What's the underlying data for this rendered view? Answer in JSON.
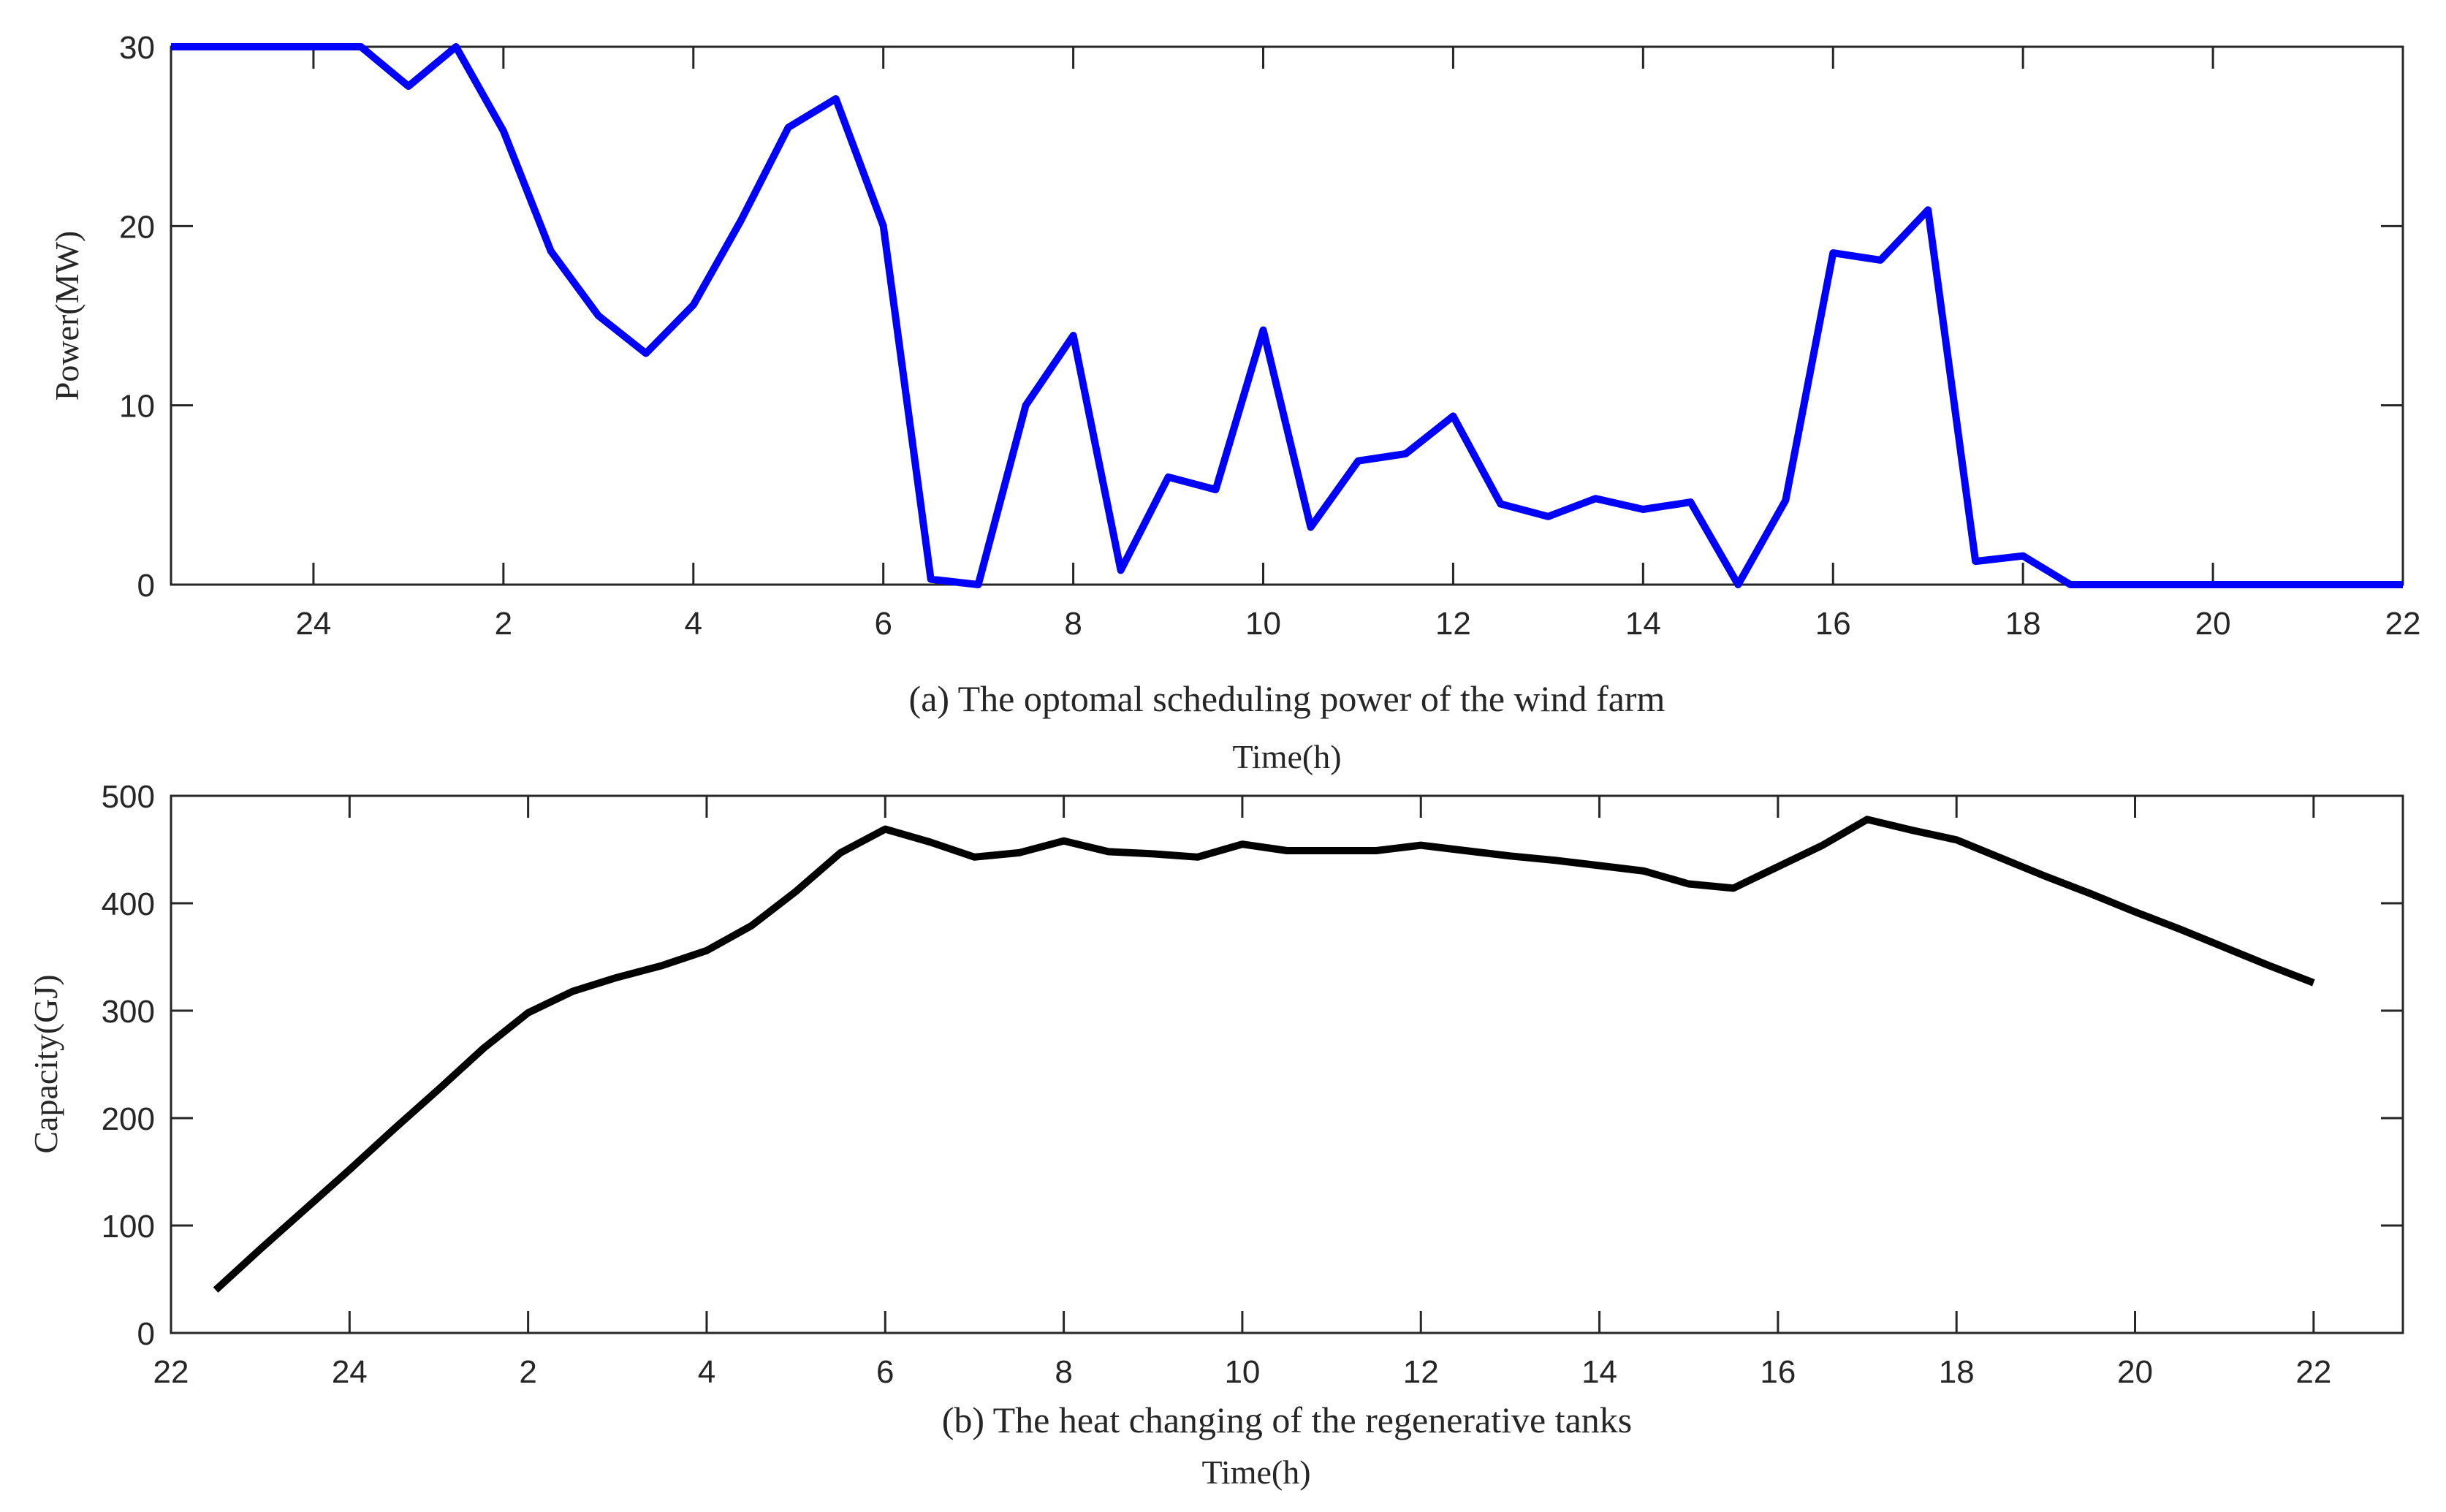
{
  "chart_data": [
    {
      "type": "line",
      "caption": "(a)  The optomal scheduling power of the wind farm",
      "xlabel": "Time(h)",
      "ylabel": "Power(MW)",
      "color": "#0000ff",
      "xlim": [
        22.5,
        46
      ],
      "ylim": [
        0,
        30
      ],
      "xticks": [
        24,
        26,
        28,
        30,
        32,
        34,
        36,
        38,
        40,
        42,
        44,
        46
      ],
      "xtick_labels": [
        "24",
        "2",
        "4",
        "6",
        "8",
        "10",
        "12",
        "14",
        "16",
        "18",
        "20",
        "22"
      ],
      "yticks": [
        0,
        10,
        20,
        30
      ],
      "ytick_labels": [
        "0",
        "10",
        "20",
        "30"
      ],
      "x": [
        22.5,
        23,
        23.5,
        24,
        24.5,
        25,
        25.5,
        26,
        26.5,
        27,
        27.5,
        28,
        28.5,
        29,
        29.5,
        30,
        30.5,
        31,
        31.5,
        32,
        32.5,
        33,
        33.5,
        34,
        34.5,
        35,
        35.5,
        36,
        36.5,
        37,
        37.5,
        38,
        38.5,
        39,
        39.5,
        40,
        40.5,
        41,
        41.5,
        42,
        42.5,
        43,
        43.5,
        44,
        44.5,
        45,
        45.5,
        46
      ],
      "y": [
        30,
        30,
        30,
        30,
        30,
        27.8,
        30,
        25.3,
        18.6,
        15,
        12.9,
        15.6,
        20.3,
        25.5,
        27.1,
        20,
        0.3,
        0,
        10,
        13.9,
        0.8,
        6,
        5.3,
        14.2,
        3.2,
        6.9,
        7.3,
        9.4,
        4.5,
        3.8,
        4.8,
        4.2,
        4.6,
        0,
        4.7,
        18.5,
        18.1,
        20.9,
        1.3,
        1.6,
        0,
        0,
        0,
        0,
        0,
        0,
        0,
        0
      ]
    },
    {
      "type": "line",
      "caption": "(b)  The heat changing of the regenerative tanks",
      "xlabel": "Time(h)",
      "ylabel": "Capacity(GJ)",
      "color": "#000000",
      "xlim": [
        22,
        47
      ],
      "ylim": [
        0,
        500
      ],
      "xticks": [
        22,
        24,
        26,
        28,
        30,
        32,
        34,
        36,
        38,
        40,
        42,
        44,
        46
      ],
      "xtick_labels": [
        "22",
        "24",
        "2",
        "4",
        "6",
        "8",
        "10",
        "12",
        "14",
        "16",
        "18",
        "20",
        "22"
      ],
      "yticks": [
        0,
        100,
        200,
        300,
        400,
        500
      ],
      "ytick_labels": [
        "0",
        "100",
        "200",
        "300",
        "400",
        "500"
      ],
      "x": [
        22.5,
        23,
        23.5,
        24,
        24.5,
        25,
        25.5,
        26,
        26.5,
        27,
        27.5,
        28,
        28.5,
        29,
        29.5,
        30,
        30.5,
        31,
        31.5,
        32,
        32.5,
        33,
        33.5,
        34,
        34.5,
        35,
        35.5,
        36,
        36.5,
        37,
        37.5,
        38,
        38.5,
        39,
        39.5,
        40,
        40.5,
        41,
        41.5,
        42,
        42.5,
        43,
        43.5,
        44,
        44.5,
        45,
        45.5,
        46
      ],
      "y": [
        40,
        78,
        115,
        152,
        190,
        227,
        265,
        298,
        318,
        331,
        342,
        356,
        379,
        411,
        447,
        469,
        457,
        443,
        447,
        458,
        448,
        446,
        443,
        455,
        449,
        449,
        449,
        454,
        449,
        444,
        440,
        435,
        430,
        418,
        414,
        434,
        454,
        478,
        468,
        459,
        442,
        425,
        409,
        392,
        376,
        359,
        342,
        326
      ]
    }
  ]
}
